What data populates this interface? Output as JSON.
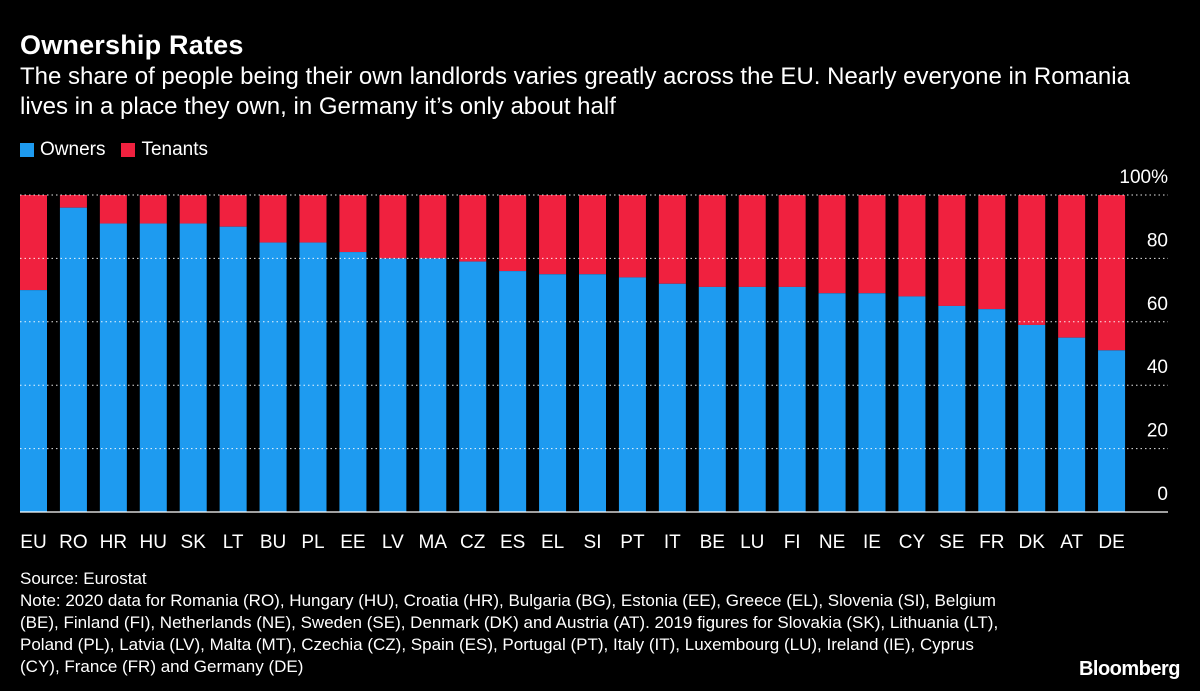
{
  "colors": {
    "owners": "#1e9bf0",
    "tenants": "#f0213f",
    "grid": "#ffffff",
    "background": "#000000"
  },
  "legend": {
    "owners": "Owners",
    "tenants": "Tenants"
  },
  "chart_data": {
    "type": "bar",
    "stacked": true,
    "title": "Ownership Rates",
    "subtitle": "The share of people being their own landlords varies greatly across the EU. Nearly everyone in Romania lives in a place they own, in Germany it’s only about half",
    "xlabel": "",
    "ylabel": "",
    "ylim": [
      0,
      100
    ],
    "yticks": [
      0,
      20,
      40,
      60,
      80,
      100
    ],
    "ytick_labels": [
      "0",
      "20",
      "40",
      "60",
      "80",
      "100%"
    ],
    "categories": [
      "EU",
      "RO",
      "HR",
      "HU",
      "SK",
      "LT",
      "BU",
      "PL",
      "EE",
      "LV",
      "MA",
      "CZ",
      "ES",
      "EL",
      "SI",
      "PT",
      "IT",
      "BE",
      "LU",
      "FI",
      "NE",
      "IE",
      "CY",
      "SE",
      "FR",
      "DK",
      "AT",
      "DE"
    ],
    "series": [
      {
        "name": "Owners",
        "values": [
          70,
          96,
          91,
          91,
          91,
          90,
          85,
          85,
          82,
          80,
          80,
          79,
          76,
          75,
          75,
          74,
          72,
          71,
          71,
          71,
          69,
          69,
          68,
          65,
          64,
          59,
          55,
          51
        ]
      },
      {
        "name": "Tenants",
        "values": [
          30,
          4,
          9,
          9,
          9,
          10,
          15,
          15,
          18,
          20,
          20,
          21,
          24,
          25,
          25,
          26,
          28,
          29,
          29,
          29,
          31,
          31,
          32,
          35,
          36,
          41,
          45,
          49
        ]
      }
    ],
    "legend_position": "top-left"
  },
  "footer": {
    "source": "Source: Eurostat",
    "note": "Note: 2020 data for Romania (RO), Hungary (HU), Croatia (HR), Bulgaria (BG), Estonia (EE), Greece (EL), Slovenia (SI), Belgium (BE), Finland (FI), Netherlands (NE), Sweden (SE), Denmark (DK) and Austria (AT). 2019 figures for Slovakia (SK), Lithuania (LT), Poland (PL), Latvia (LV), Malta (MT), Czechia (CZ), Spain (ES), Portugal (PT), Italy (IT), Luxembourg (LU), Ireland (IE), Cyprus (CY), France (FR) and Germany (DE)",
    "brand": "Bloomberg"
  }
}
